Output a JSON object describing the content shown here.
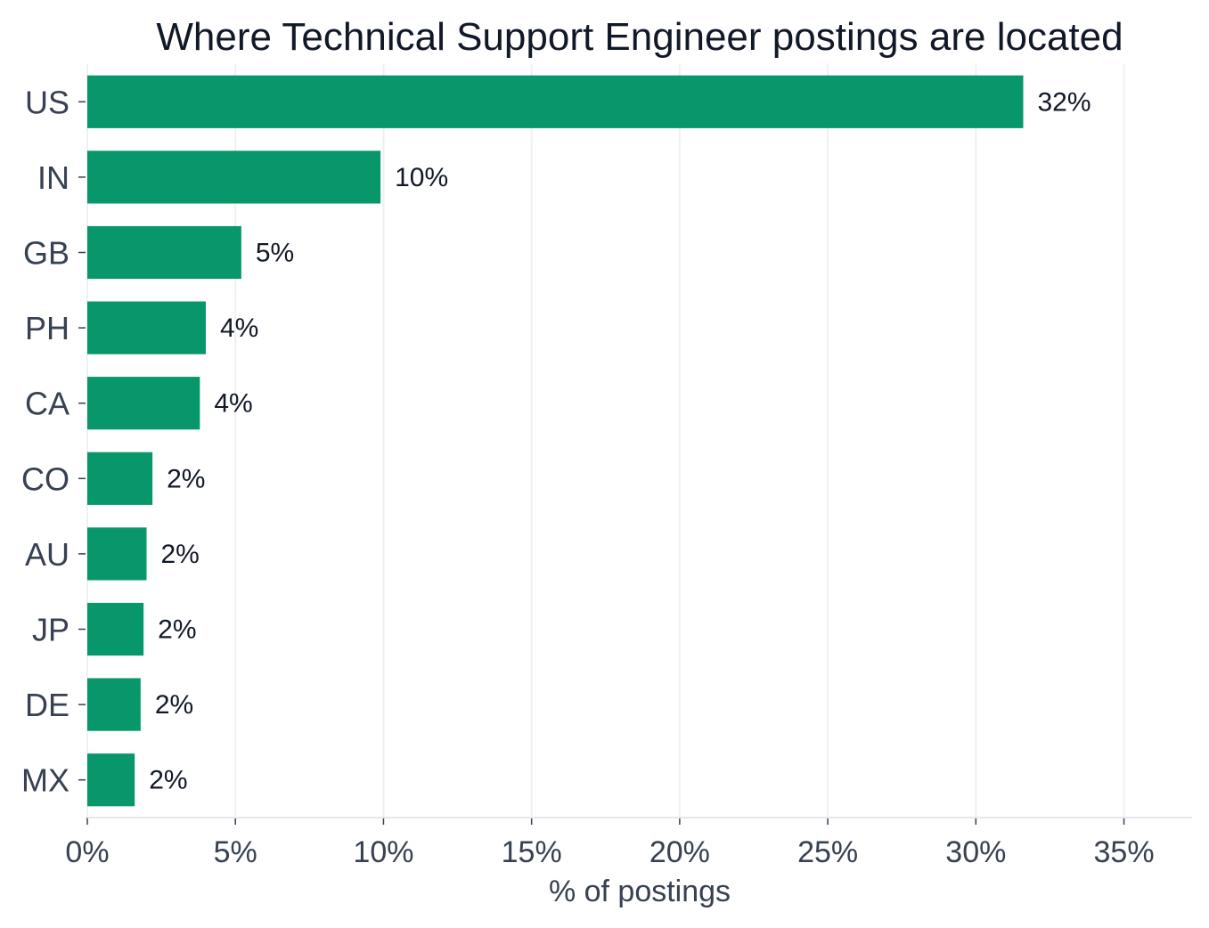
{
  "chart_data": {
    "type": "bar",
    "orientation": "horizontal",
    "title": "Where Technical Support Engineer postings are located",
    "xlabel": "% of postings",
    "ylabel": "",
    "categories": [
      "US",
      "IN",
      "GB",
      "PH",
      "CA",
      "CO",
      "AU",
      "JP",
      "DE",
      "MX"
    ],
    "values": [
      31.6,
      9.9,
      5.2,
      4.0,
      3.8,
      2.2,
      2.0,
      1.9,
      1.8,
      1.6
    ],
    "data_labels": [
      "32%",
      "10%",
      "5%",
      "4%",
      "4%",
      "2%",
      "2%",
      "2%",
      "2%",
      "2%"
    ],
    "xlim": [
      0,
      37.3
    ],
    "xticks": [
      0,
      5,
      10,
      15,
      20,
      25,
      30,
      35
    ],
    "xtick_labels": [
      "0%",
      "5%",
      "10%",
      "15%",
      "20%",
      "25%",
      "30%",
      "35%"
    ],
    "grid": "vertical",
    "bar_color": "#07976b",
    "grid_color": "#eef0f2",
    "axis_color": "#e5e7eb"
  }
}
